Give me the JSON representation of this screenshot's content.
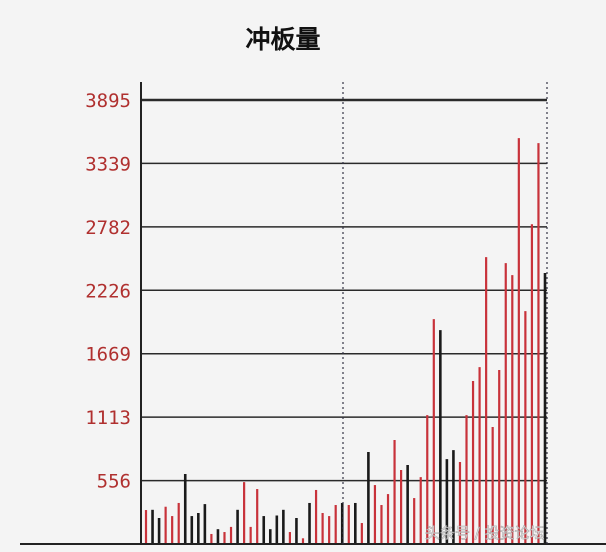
{
  "chart_data": {
    "type": "bar",
    "title": "冲板量",
    "xlabel": "",
    "ylabel": "",
    "ylim": [
      0,
      3895
    ],
    "yticks": [
      556,
      1113,
      1669,
      2226,
      2782,
      3339,
      3895
    ],
    "grid": true,
    "colors": {
      "red": "#c8323a",
      "black": "#1a1a1a",
      "tick_label": "#b0302f"
    },
    "values": [
      298,
      300,
      228,
      327,
      245,
      360,
      614,
      245,
      272,
      350,
      88,
      130,
      105,
      150,
      300,
      543,
      150,
      482,
      245,
      130,
      250,
      300,
      105,
      228,
      50,
      360,
      474,
      272,
      245,
      342,
      360,
      342,
      360,
      184,
      807,
      517,
      342,
      438,
      912,
      649,
      693,
      403,
      587,
      1131,
      1973,
      1876,
      745,
      824,
      719,
      1131,
      1430,
      1552,
      2517,
      1026,
      1526,
      2464,
      2359,
      3561,
      2043,
      2805,
      3517,
      2377
    ],
    "bar_colors": [
      "red",
      "black",
      "black",
      "red",
      "red",
      "red",
      "black",
      "black",
      "black",
      "black",
      "red",
      "black",
      "red",
      "red",
      "black",
      "red",
      "red",
      "red",
      "black",
      "black",
      "black",
      "black",
      "red",
      "black",
      "red",
      "black",
      "red",
      "red",
      "red",
      "red",
      "black",
      "red",
      "black",
      "red",
      "black",
      "red",
      "red",
      "red",
      "red",
      "red",
      "black",
      "red",
      "red",
      "red",
      "red",
      "black",
      "black",
      "black",
      "red",
      "red",
      "red",
      "red",
      "red",
      "red",
      "red",
      "red",
      "red",
      "red",
      "red",
      "red",
      "red",
      "black"
    ]
  },
  "watermark": "头条号 / 投资论坛"
}
